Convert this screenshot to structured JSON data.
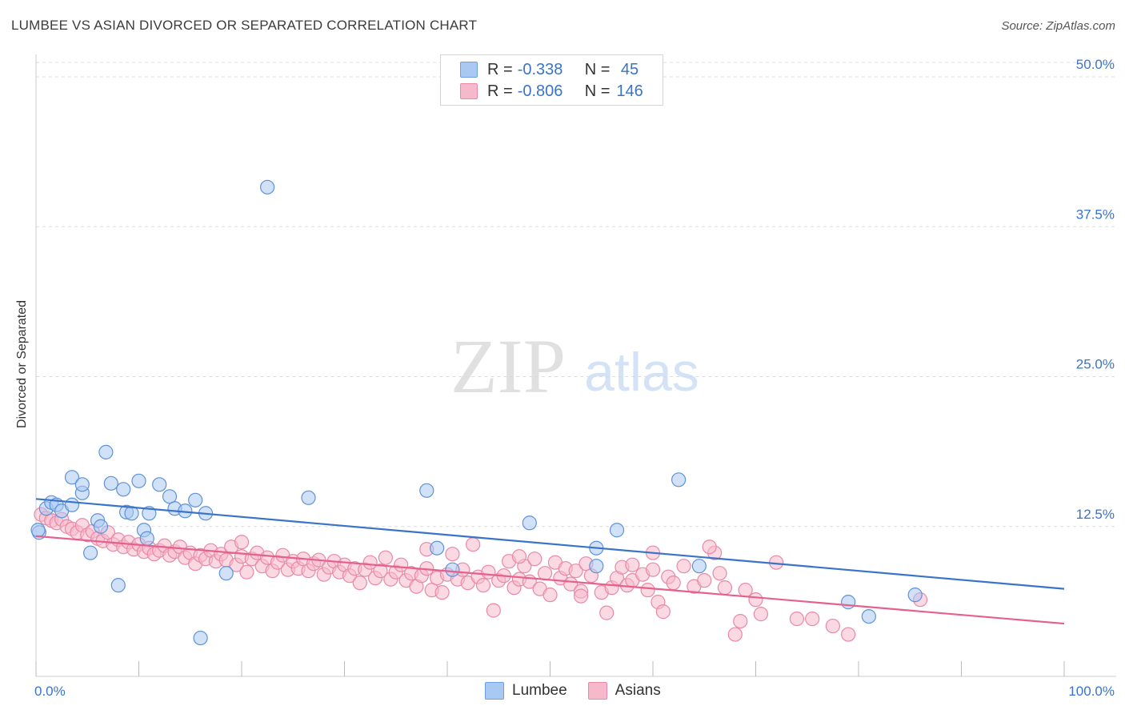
{
  "header": {
    "title": "LUMBEE VS ASIAN DIVORCED OR SEPARATED CORRELATION CHART",
    "source": "Source: ZipAtlas.com"
  },
  "watermark": {
    "zip": "ZIP",
    "atlas": "atlas"
  },
  "legend": {
    "rows": [
      {
        "r_label": "R = ",
        "r_value": "-0.338",
        "n_label": "N = ",
        "n_value": " 45",
        "color": "#aac9f2",
        "border": "#6f9fe0"
      },
      {
        "r_label": "R = ",
        "r_value": "-0.806",
        "n_label": "N = ",
        "n_value": "146",
        "color": "#f6b9cc",
        "border": "#e889a8"
      }
    ]
  },
  "bottom_legend": {
    "series1": "Lumbee",
    "series2": "Asians"
  },
  "chart_data": {
    "type": "scatter",
    "title": "LUMBEE VS ASIAN DIVORCED OR SEPARATED CORRELATION CHART",
    "xlabel": "",
    "ylabel": "Divorced or Separated",
    "xlim": [
      0,
      100
    ],
    "ylim": [
      0,
      50
    ],
    "x_tick_labels": [
      "0.0%",
      "100.0%"
    ],
    "y_ticks": [
      12.5,
      25.0,
      37.5,
      50.0
    ],
    "y_tick_labels": [
      "12.5%",
      "25.0%",
      "37.5%",
      "50.0%"
    ],
    "grid": "horizontal dashed",
    "legend_position": "top-center",
    "colors": {
      "lumbee": "#3a74c8",
      "asians": "#e6608e",
      "axis_text": "#3a74c8"
    },
    "series": [
      {
        "name": "Lumbee",
        "r": -0.338,
        "n": 45,
        "trend": {
          "x": [
            0,
            100
          ],
          "y": [
            14.8,
            7.3
          ]
        },
        "points": [
          [
            0.3,
            12.0
          ],
          [
            1.0,
            14.0
          ],
          [
            1.5,
            14.5
          ],
          [
            2.0,
            14.3
          ],
          [
            2.5,
            13.8
          ],
          [
            3.5,
            14.3
          ],
          [
            3.5,
            16.6
          ],
          [
            4.5,
            15.3
          ],
          [
            4.5,
            16.0
          ],
          [
            5.3,
            10.3
          ],
          [
            6.0,
            13.0
          ],
          [
            6.3,
            12.5
          ],
          [
            6.8,
            18.7
          ],
          [
            7.3,
            16.1
          ],
          [
            8.0,
            7.6
          ],
          [
            8.5,
            15.6
          ],
          [
            8.8,
            13.7
          ],
          [
            9.3,
            13.6
          ],
          [
            10.0,
            16.3
          ],
          [
            10.5,
            12.2
          ],
          [
            10.8,
            11.5
          ],
          [
            11.0,
            13.6
          ],
          [
            12.0,
            16.0
          ],
          [
            13.0,
            15.0
          ],
          [
            13.5,
            14.0
          ],
          [
            14.5,
            13.8
          ],
          [
            15.5,
            14.7
          ],
          [
            16.0,
            3.2
          ],
          [
            16.5,
            13.6
          ],
          [
            18.5,
            8.6
          ],
          [
            22.5,
            40.8
          ],
          [
            26.5,
            14.9
          ],
          [
            38.0,
            15.5
          ],
          [
            39.0,
            10.7
          ],
          [
            40.5,
            8.9
          ],
          [
            48.0,
            12.8
          ],
          [
            54.5,
            10.7
          ],
          [
            54.5,
            9.2
          ],
          [
            56.5,
            12.2
          ],
          [
            62.5,
            16.4
          ],
          [
            64.5,
            9.2
          ],
          [
            79.0,
            6.2
          ],
          [
            81.0,
            5.0
          ],
          [
            85.5,
            6.8
          ],
          [
            0.2,
            12.2
          ]
        ]
      },
      {
        "name": "Asians",
        "r": -0.806,
        "n": 146,
        "trend": {
          "x": [
            0,
            100
          ],
          "y": [
            11.7,
            4.4
          ]
        },
        "points": [
          [
            0.5,
            13.5
          ],
          [
            1.0,
            13.2
          ],
          [
            1.5,
            13.0
          ],
          [
            2.0,
            12.8
          ],
          [
            2.5,
            13.1
          ],
          [
            3.0,
            12.5
          ],
          [
            3.5,
            12.3
          ],
          [
            4.0,
            12.0
          ],
          [
            4.5,
            12.6
          ],
          [
            5.0,
            11.8
          ],
          [
            5.5,
            12.1
          ],
          [
            6.0,
            11.5
          ],
          [
            6.5,
            11.3
          ],
          [
            7.0,
            12.0
          ],
          [
            7.5,
            11.0
          ],
          [
            8.0,
            11.4
          ],
          [
            8.5,
            10.8
          ],
          [
            9.0,
            11.2
          ],
          [
            9.5,
            10.6
          ],
          [
            10.0,
            11.0
          ],
          [
            10.5,
            10.4
          ],
          [
            11.0,
            10.7
          ],
          [
            11.5,
            10.2
          ],
          [
            12.0,
            10.5
          ],
          [
            12.5,
            10.9
          ],
          [
            13.0,
            10.1
          ],
          [
            13.5,
            10.4
          ],
          [
            14.0,
            10.8
          ],
          [
            14.5,
            9.9
          ],
          [
            15.0,
            10.3
          ],
          [
            15.5,
            9.4
          ],
          [
            16.0,
            10.1
          ],
          [
            16.5,
            9.8
          ],
          [
            17.0,
            10.5
          ],
          [
            17.5,
            9.6
          ],
          [
            18.0,
            10.2
          ],
          [
            18.5,
            9.7
          ],
          [
            19.0,
            10.8
          ],
          [
            19.5,
            9.3
          ],
          [
            20.0,
            10.0
          ],
          [
            20.5,
            8.7
          ],
          [
            21.0,
            9.8
          ],
          [
            21.5,
            10.3
          ],
          [
            22.0,
            9.2
          ],
          [
            22.5,
            9.9
          ],
          [
            23.0,
            8.8
          ],
          [
            23.5,
            9.5
          ],
          [
            24.0,
            10.1
          ],
          [
            24.5,
            8.9
          ],
          [
            25.0,
            9.6
          ],
          [
            25.5,
            9.0
          ],
          [
            26.0,
            9.8
          ],
          [
            26.5,
            8.8
          ],
          [
            27.0,
            9.4
          ],
          [
            27.5,
            9.7
          ],
          [
            28.0,
            8.5
          ],
          [
            28.5,
            9.1
          ],
          [
            29.0,
            9.6
          ],
          [
            29.5,
            8.7
          ],
          [
            30.0,
            9.3
          ],
          [
            30.5,
            8.4
          ],
          [
            31.0,
            9.0
          ],
          [
            31.5,
            7.8
          ],
          [
            32.0,
            8.9
          ],
          [
            32.5,
            9.5
          ],
          [
            33.0,
            8.2
          ],
          [
            33.5,
            8.8
          ],
          [
            34.0,
            9.9
          ],
          [
            34.5,
            8.1
          ],
          [
            35.0,
            8.7
          ],
          [
            35.5,
            9.3
          ],
          [
            36.0,
            8.0
          ],
          [
            36.5,
            8.6
          ],
          [
            37.0,
            7.5
          ],
          [
            37.5,
            8.4
          ],
          [
            38.0,
            9.0
          ],
          [
            38.5,
            7.2
          ],
          [
            39.0,
            8.2
          ],
          [
            39.5,
            7.0
          ],
          [
            40.0,
            8.5
          ],
          [
            40.5,
            10.2
          ],
          [
            41.0,
            8.1
          ],
          [
            41.5,
            8.9
          ],
          [
            42.0,
            7.8
          ],
          [
            42.5,
            11.0
          ],
          [
            43.0,
            8.3
          ],
          [
            43.5,
            7.6
          ],
          [
            44.0,
            8.7
          ],
          [
            44.5,
            5.5
          ],
          [
            45.0,
            8.0
          ],
          [
            45.5,
            8.4
          ],
          [
            46.0,
            9.6
          ],
          [
            46.5,
            7.4
          ],
          [
            47.0,
            8.1
          ],
          [
            47.5,
            9.2
          ],
          [
            48.0,
            7.9
          ],
          [
            48.5,
            9.8
          ],
          [
            49.0,
            7.3
          ],
          [
            49.5,
            8.6
          ],
          [
            50.0,
            6.8
          ],
          [
            50.5,
            9.5
          ],
          [
            51.0,
            8.2
          ],
          [
            51.5,
            9.0
          ],
          [
            52.0,
            7.7
          ],
          [
            52.5,
            8.8
          ],
          [
            53.0,
            7.1
          ],
          [
            53.5,
            9.4
          ],
          [
            54.0,
            8.4
          ],
          [
            55.0,
            7.0
          ],
          [
            55.5,
            5.3
          ],
          [
            56.0,
            7.4
          ],
          [
            56.5,
            8.2
          ],
          [
            57.0,
            9.1
          ],
          [
            57.5,
            7.6
          ],
          [
            58.0,
            8.0
          ],
          [
            59.0,
            8.5
          ],
          [
            59.5,
            7.2
          ],
          [
            60.0,
            8.9
          ],
          [
            60.5,
            6.2
          ],
          [
            61.0,
            5.4
          ],
          [
            61.5,
            8.3
          ],
          [
            62.0,
            7.8
          ],
          [
            63.0,
            9.2
          ],
          [
            64.0,
            7.5
          ],
          [
            65.0,
            8.0
          ],
          [
            66.0,
            10.3
          ],
          [
            66.5,
            8.6
          ],
          [
            67.0,
            7.4
          ],
          [
            68.0,
            3.5
          ],
          [
            68.5,
            4.6
          ],
          [
            69.0,
            7.2
          ],
          [
            70.0,
            6.4
          ],
          [
            70.5,
            5.2
          ],
          [
            72.0,
            9.5
          ],
          [
            74.0,
            4.8
          ],
          [
            75.5,
            4.8
          ],
          [
            77.5,
            4.2
          ],
          [
            79.0,
            3.5
          ],
          [
            86.0,
            6.4
          ],
          [
            60.0,
            10.3
          ],
          [
            65.5,
            10.8
          ],
          [
            58.0,
            9.3
          ],
          [
            47.0,
            10.0
          ],
          [
            53.0,
            6.7
          ],
          [
            20.0,
            11.2
          ],
          [
            38.0,
            10.6
          ]
        ]
      }
    ]
  }
}
